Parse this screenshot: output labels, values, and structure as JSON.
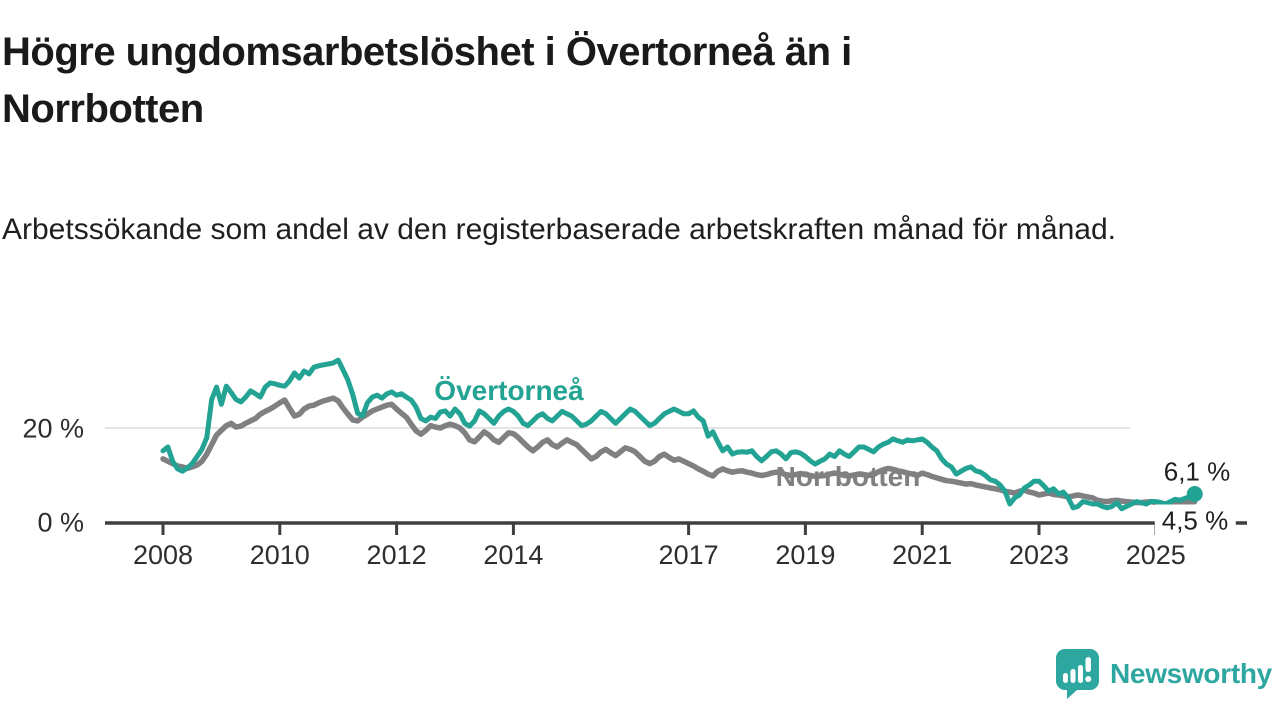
{
  "header": {
    "title": "Högre ungdomsarbetslöshet i Övertorneå än i Norrbotten",
    "subtitle": "Arbetssökande som andel av den registerbaserade arbetskraften månad för månad."
  },
  "chart_data": {
    "type": "line",
    "title": "Högre ungdomsarbetslöshet i Övertorneå än i Norrbotten",
    "x_unit": "month",
    "x_range": [
      "2008-01",
      "2025-09"
    ],
    "ylim": [
      0,
      36
    ],
    "grid": "horizontal line at 20% only",
    "legend_position": "inline-labels-on-lines",
    "x_ticks": [
      2008,
      2010,
      2012,
      2014,
      2017,
      2019,
      2021,
      2023,
      2025
    ],
    "y_ticks": [
      {
        "value": 20,
        "label": "20 %"
      },
      {
        "value": 0,
        "label": "0 %"
      }
    ],
    "series": [
      {
        "name": "Övertorneå",
        "color": "#23a393",
        "end_label": "6,1 %",
        "end_value": 6.1,
        "values": [
          15.2,
          16.0,
          13.0,
          11.4,
          10.9,
          11.6,
          12.5,
          14.0,
          15.5,
          18.0,
          26.0,
          28.6,
          25.0,
          28.8,
          27.5,
          26.0,
          25.5,
          26.5,
          27.8,
          27.2,
          26.5,
          28.6,
          29.5,
          29.3,
          29.0,
          28.8,
          29.9,
          31.6,
          30.5,
          32.0,
          31.4,
          32.8,
          33.1,
          33.3,
          33.5,
          33.7,
          34.3,
          32.2,
          30.1,
          27.0,
          23.1,
          22.5,
          25.3,
          26.5,
          26.9,
          26.3,
          27.2,
          27.6,
          26.9,
          27.2,
          26.5,
          25.9,
          24.4,
          22.0,
          21.5,
          22.3,
          22.0,
          23.4,
          23.6,
          22.5,
          24.0,
          23.0,
          21.0,
          20.4,
          21.5,
          23.6,
          23.0,
          22.0,
          21.0,
          22.5,
          23.5,
          24.0,
          23.5,
          22.5,
          21.0,
          20.5,
          21.5,
          22.5,
          23.0,
          22.0,
          21.5,
          22.5,
          23.5,
          23.0,
          22.5,
          21.5,
          20.5,
          20.8,
          21.5,
          22.5,
          23.5,
          23.0,
          22.0,
          21.0,
          22.0,
          23.0,
          24.0,
          23.5,
          22.5,
          21.5,
          20.5,
          21.0,
          22.0,
          23.0,
          23.5,
          24.0,
          23.5,
          23.0,
          23.0,
          23.6,
          22.3,
          21.5,
          18.3,
          19.2,
          17.1,
          15.2,
          16.0,
          14.5,
          14.9,
          15.0,
          14.9,
          15.2,
          14.0,
          13.1,
          14.0,
          15.0,
          15.2,
          14.5,
          13.5,
          14.8,
          15.0,
          14.7,
          14.0,
          13.1,
          12.4,
          13.0,
          13.5,
          14.5,
          14.0,
          15.2,
          14.5,
          14.0,
          15.0,
          16.0,
          16.0,
          15.5,
          15.0,
          16.0,
          16.6,
          17.0,
          17.7,
          17.3,
          17.0,
          17.5,
          17.3,
          17.5,
          17.7,
          17.0,
          16.0,
          15.2,
          13.5,
          12.4,
          11.8,
          10.3,
          10.9,
          11.5,
          11.8,
          11.0,
          10.7,
          10.0,
          9.1,
          8.8,
          8.0,
          6.7,
          4.0,
          5.3,
          5.9,
          7.4,
          8.0,
          8.8,
          8.8,
          7.8,
          6.7,
          7.2,
          6.1,
          6.5,
          5.3,
          3.2,
          3.5,
          4.5,
          4.3,
          4.0,
          4.0,
          3.5,
          3.2,
          3.5,
          4.3,
          3.0,
          3.5,
          4.0,
          4.5,
          4.3,
          4.0,
          4.5,
          4.5,
          4.3,
          4.0,
          4.5,
          5.0,
          4.8,
          5.2,
          5.5,
          6.1
        ]
      },
      {
        "name": "Norrbotten",
        "color": "#808083",
        "end_label": "4,5 %",
        "end_value": 4.5,
        "values": [
          13.5,
          13.0,
          12.5,
          12.0,
          11.8,
          11.5,
          11.8,
          12.2,
          13.0,
          14.5,
          16.5,
          18.5,
          19.5,
          20.5,
          21.0,
          20.2,
          20.4,
          21.0,
          21.5,
          22.0,
          22.9,
          23.5,
          24.0,
          24.6,
          25.3,
          25.9,
          24.2,
          22.5,
          22.9,
          24.0,
          24.6,
          24.8,
          25.3,
          25.7,
          26.0,
          26.3,
          25.7,
          24.2,
          22.9,
          21.7,
          21.5,
          22.3,
          22.9,
          23.6,
          24.0,
          24.4,
          24.8,
          25.0,
          24.0,
          23.1,
          22.3,
          20.8,
          19.4,
          18.7,
          19.5,
          20.5,
          20.2,
          20.0,
          20.5,
          20.8,
          20.5,
          20.0,
          19.0,
          17.5,
          17.1,
          18.1,
          19.2,
          18.5,
          17.5,
          17.0,
          18.0,
          19.0,
          18.8,
          18.0,
          17.0,
          16.0,
          15.2,
          16.0,
          17.0,
          17.5,
          16.5,
          16.0,
          16.8,
          17.5,
          17.0,
          16.5,
          15.5,
          14.5,
          13.5,
          14.0,
          15.0,
          15.5,
          14.8,
          14.2,
          15.0,
          15.8,
          15.5,
          15.0,
          14.0,
          13.0,
          12.5,
          13.0,
          14.0,
          14.5,
          13.8,
          13.2,
          13.5,
          13.0,
          12.5,
          12.0,
          11.4,
          10.9,
          10.3,
          9.9,
          10.9,
          11.4,
          11.0,
          10.7,
          10.9,
          11.0,
          10.7,
          10.5,
          10.2,
          10.0,
          10.2,
          10.5,
          10.7,
          10.5,
          10.2,
          10.0,
          10.2,
          10.4,
          10.2,
          10.0,
          9.8,
          9.9,
          10.0,
          10.3,
          10.5,
          10.3,
          10.0,
          9.9,
          10.1,
          10.3,
          10.2,
          10.0,
          10.2,
          10.8,
          11.2,
          11.5,
          11.3,
          11.0,
          10.8,
          10.5,
          10.3,
          10.0,
          10.5,
          10.2,
          9.8,
          9.5,
          9.2,
          8.9,
          8.8,
          8.6,
          8.4,
          8.2,
          8.3,
          8.0,
          7.8,
          7.6,
          7.4,
          7.2,
          7.0,
          6.7,
          6.5,
          6.3,
          6.7,
          6.9,
          6.5,
          6.3,
          5.9,
          6.1,
          6.3,
          6.0,
          5.9,
          5.7,
          5.5,
          5.7,
          5.9,
          5.7,
          5.5,
          5.3,
          4.8,
          4.6,
          4.5,
          4.7,
          4.8,
          4.6,
          4.5,
          4.4,
          4.3,
          4.3,
          4.4,
          4.5,
          4.3,
          4.2,
          4.0,
          4.1,
          4.3,
          4.2,
          4.4,
          4.4,
          4.5
        ]
      }
    ]
  },
  "colors": {
    "accent_teal": "#23a393",
    "line_gray": "#808083",
    "axis": "#3f3f3f",
    "grid": "#dcdcdc",
    "title_text": "#1a1a1a",
    "tick_text": "#2e2e2e",
    "logo": "#2ea7a0"
  },
  "branding": {
    "logo_text": "Newsworthy"
  }
}
